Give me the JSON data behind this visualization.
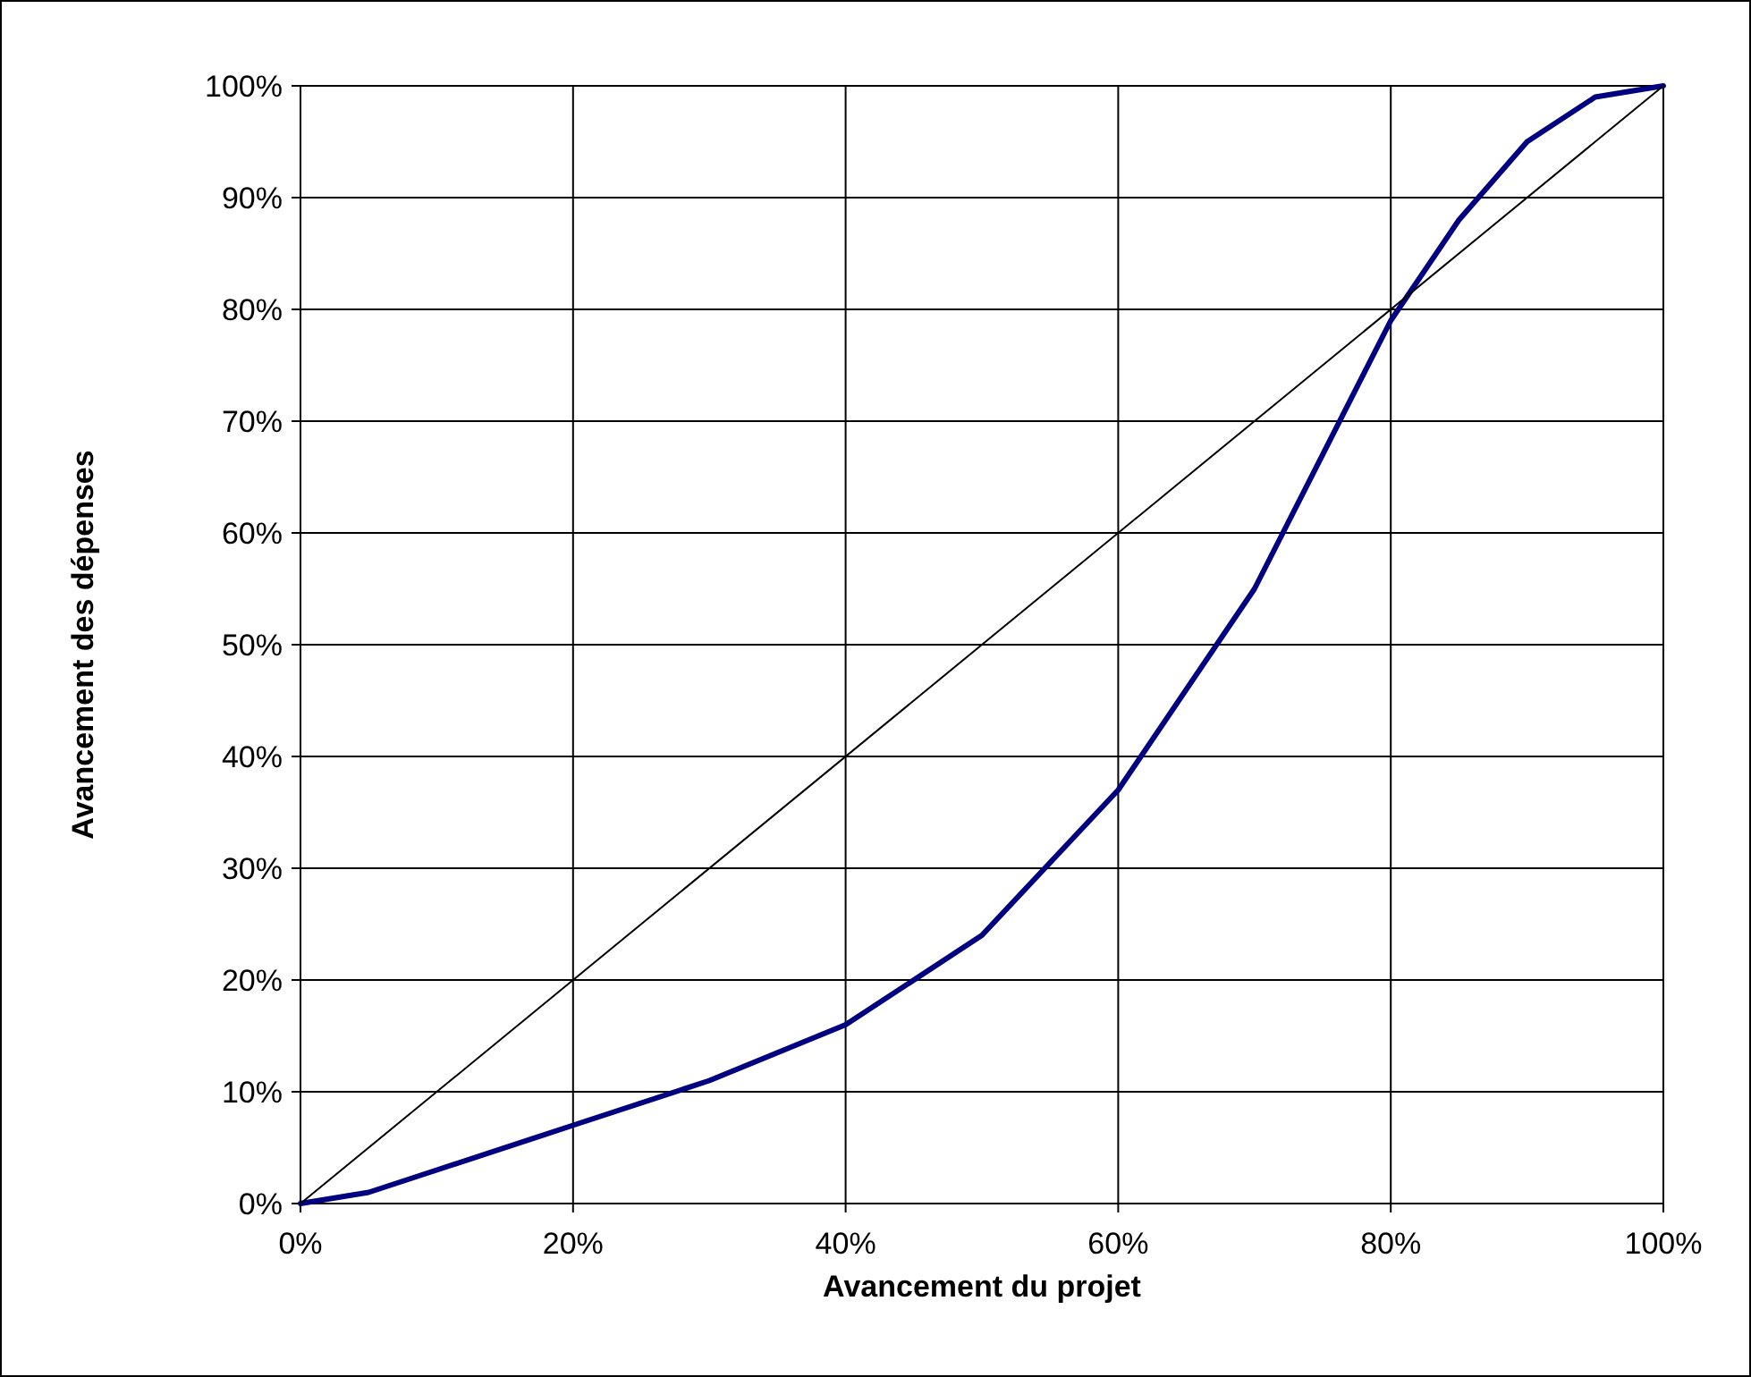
{
  "chart_data": {
    "type": "line",
    "xlabel": "Avancement du projet",
    "ylabel": "Avancement des dépenses",
    "xlim": [
      0,
      100
    ],
    "ylim": [
      0,
      100
    ],
    "xticks": [
      {
        "value": 0,
        "label": "0%"
      },
      {
        "value": 20,
        "label": "20%"
      },
      {
        "value": 40,
        "label": "40%"
      },
      {
        "value": 60,
        "label": "60%"
      },
      {
        "value": 80,
        "label": "80%"
      },
      {
        "value": 100,
        "label": "100%"
      }
    ],
    "yticks": [
      {
        "value": 0,
        "label": "0%"
      },
      {
        "value": 10,
        "label": "10%"
      },
      {
        "value": 20,
        "label": "20%"
      },
      {
        "value": 30,
        "label": "30%"
      },
      {
        "value": 40,
        "label": "40%"
      },
      {
        "value": 50,
        "label": "50%"
      },
      {
        "value": 60,
        "label": "60%"
      },
      {
        "value": 70,
        "label": "70%"
      },
      {
        "value": 80,
        "label": "80%"
      },
      {
        "value": 90,
        "label": "90%"
      },
      {
        "value": 100,
        "label": "100%"
      }
    ],
    "grid": true,
    "marker": "none",
    "line_style": "solid",
    "series": [
      {
        "color": "#000080",
        "x": [
          0,
          5,
          10,
          20,
          30,
          40,
          50,
          60,
          70,
          80,
          85,
          90,
          95,
          100
        ],
        "values": [
          0,
          1,
          3,
          7,
          11,
          16,
          24,
          37,
          55,
          79,
          88,
          95,
          99,
          100
        ]
      },
      {
        "color": "#000000",
        "x": [
          0,
          100
        ],
        "values": [
          0,
          100
        ]
      }
    ]
  }
}
